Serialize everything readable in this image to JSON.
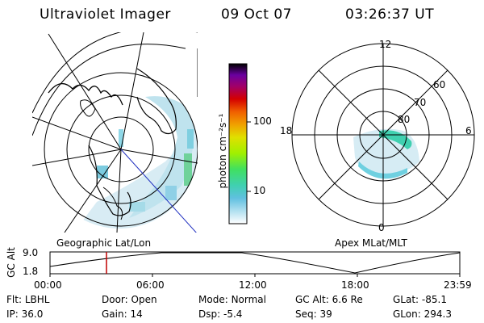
{
  "header": {
    "title": "Ultraviolet Imager",
    "date": "09 Oct 07",
    "time": "03:26:37 UT"
  },
  "colorbar": {
    "unit_label": "photon cm⁻²s⁻¹",
    "ticks": [
      "100",
      "10"
    ],
    "colors": [
      "#000000",
      "#2a0050",
      "#6a00a0",
      "#a0006a",
      "#d40000",
      "#f06000",
      "#f0a000",
      "#e0e000",
      "#a0f000",
      "#40e060",
      "#40d0b0",
      "#60c0e0",
      "#b0e0f0",
      "#ffffff"
    ]
  },
  "geo_panel": {
    "label": "Geographic Lat/Lon"
  },
  "mag_panel": {
    "label": "Apex MLat/MLT",
    "lat_labels": [
      "60",
      "70",
      "80"
    ],
    "mlt_labels": {
      "top": "12",
      "bottom": "0",
      "left": "18",
      "right": "6"
    }
  },
  "altitude_plot": {
    "ylabel": "GC Alt",
    "ymax_label": "9.0",
    "ymin_label": "1.8",
    "time_ticks": [
      "00:00",
      "06:00",
      "12:00",
      "18:00",
      "23:59"
    ],
    "marker_color": "#c00000"
  },
  "footer": {
    "row1": [
      {
        "key": "Flt:",
        "val": "LBHL"
      },
      {
        "key": "Door:",
        "val": "Open"
      },
      {
        "key": "Mode:",
        "val": "Normal"
      },
      {
        "key": "GC Alt:",
        "val": "6.6 Re"
      },
      {
        "key": "GLat:",
        "val": "-85.1"
      }
    ],
    "row2": [
      {
        "key": "IP:",
        "val": "36.0"
      },
      {
        "key": "Gain:",
        "val": "14"
      },
      {
        "key": "Dsp:",
        "val": "-5.4"
      },
      {
        "key": "Seq:",
        "val": "39"
      },
      {
        "key": "GLon:",
        "val": "294.3"
      }
    ]
  }
}
